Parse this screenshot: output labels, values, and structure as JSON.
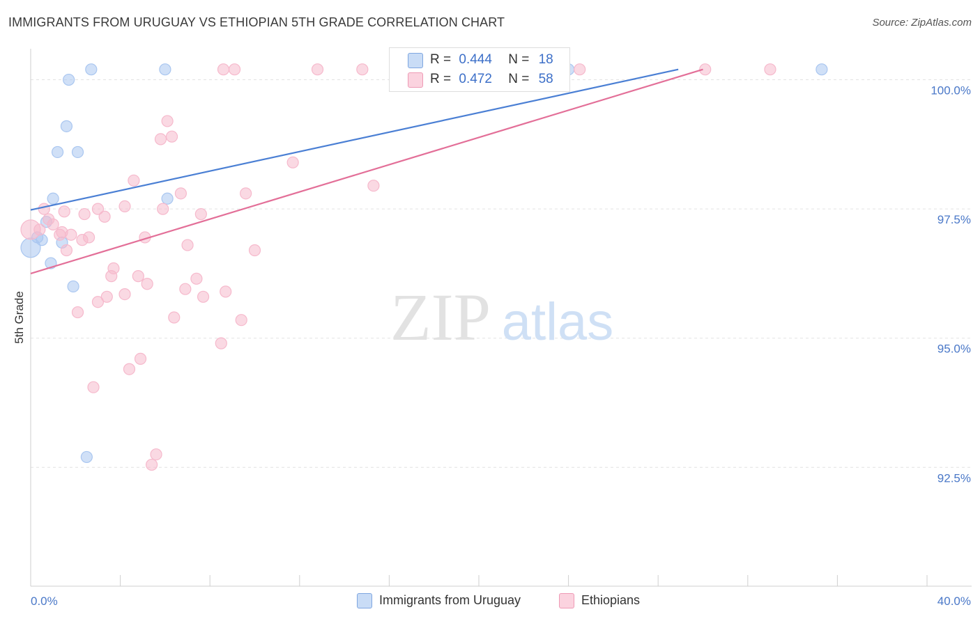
{
  "header": {
    "title": "IMMIGRANTS FROM URUGUAY VS ETHIOPIAN 5TH GRADE CORRELATION CHART",
    "source": "Source: ZipAtlas.com"
  },
  "watermark": {
    "zip": "ZIP",
    "atlas": "atlas"
  },
  "legend_top": {
    "rows": [
      {
        "r_label": "R =",
        "r_value": "0.444",
        "n_label": "N =",
        "n_value": "18",
        "color": "#a9c6f0"
      },
      {
        "r_label": "R =",
        "r_value": "0.472",
        "n_label": "N =",
        "n_value": "58",
        "color": "#f6b9cc"
      }
    ]
  },
  "legend_bottom": {
    "series": [
      {
        "label": "Immigrants from Uruguay",
        "color": "#a9c6f0"
      },
      {
        "label": "Ethiopians",
        "color": "#f6b9cc"
      }
    ]
  },
  "chart_data": {
    "type": "scatter",
    "title": "IMMIGRANTS FROM URUGUAY VS ETHIOPIAN 5TH GRADE CORRELATION CHART",
    "xlabel": "",
    "ylabel": "5th Grade",
    "xlim": [
      0,
      40
    ],
    "ylim": [
      90.2,
      100.6
    ],
    "x_tick_labels": [
      "0.0%",
      "40.0%"
    ],
    "y_ticks": [
      100.0,
      97.5,
      95.0,
      92.5
    ],
    "y_tick_labels": [
      "100.0%",
      "97.5%",
      "95.0%",
      "92.5%"
    ],
    "grid": true,
    "series": [
      {
        "name": "Immigrants from Uruguay",
        "color": "#4a7fd4",
        "fill": "#a9c6f0",
        "points": [
          [
            2.7,
            100.2
          ],
          [
            6.0,
            100.2
          ],
          [
            1.7,
            100.0
          ],
          [
            1.6,
            99.1
          ],
          [
            1.2,
            98.6
          ],
          [
            2.1,
            98.6
          ],
          [
            1.0,
            97.7
          ],
          [
            6.1,
            97.7
          ],
          [
            0.7,
            97.25
          ],
          [
            0.3,
            96.95
          ],
          [
            0.5,
            96.9
          ],
          [
            1.4,
            96.85
          ],
          [
            0.0,
            96.75
          ],
          [
            0.9,
            96.45
          ],
          [
            1.9,
            96.0
          ],
          [
            2.5,
            92.7
          ],
          [
            24.0,
            100.2
          ],
          [
            35.3,
            100.2
          ]
        ],
        "trend": {
          "x": [
            0,
            28.9
          ],
          "y": [
            97.48,
            100.2
          ]
        }
      },
      {
        "name": "Ethiopians",
        "color": "#e36f98",
        "fill": "#f6b9cc",
        "points": [
          [
            8.6,
            100.2
          ],
          [
            9.1,
            100.2
          ],
          [
            12.8,
            100.2
          ],
          [
            14.8,
            100.2
          ],
          [
            20.8,
            100.2
          ],
          [
            30.1,
            100.2
          ],
          [
            33.0,
            100.2
          ],
          [
            6.1,
            99.2
          ],
          [
            5.8,
            98.85
          ],
          [
            6.3,
            98.9
          ],
          [
            11.7,
            98.4
          ],
          [
            4.6,
            98.05
          ],
          [
            15.3,
            97.95
          ],
          [
            6.7,
            97.8
          ],
          [
            9.6,
            97.8
          ],
          [
            0.6,
            97.5
          ],
          [
            3.0,
            97.5
          ],
          [
            4.2,
            97.55
          ],
          [
            5.9,
            97.5
          ],
          [
            1.5,
            97.45
          ],
          [
            2.4,
            97.4
          ],
          [
            3.3,
            97.35
          ],
          [
            7.6,
            97.4
          ],
          [
            0.8,
            97.3
          ],
          [
            1.0,
            97.2
          ],
          [
            0.0,
            97.1
          ],
          [
            0.4,
            97.1
          ],
          [
            1.4,
            97.05
          ],
          [
            1.8,
            97.0
          ],
          [
            1.3,
            97.0
          ],
          [
            2.6,
            96.95
          ],
          [
            5.1,
            96.95
          ],
          [
            2.3,
            96.9
          ],
          [
            7.0,
            96.8
          ],
          [
            10.0,
            96.7
          ],
          [
            1.6,
            96.7
          ],
          [
            3.7,
            96.35
          ],
          [
            3.6,
            96.2
          ],
          [
            4.8,
            96.2
          ],
          [
            7.4,
            96.15
          ],
          [
            5.2,
            96.05
          ],
          [
            6.9,
            95.95
          ],
          [
            8.7,
            95.9
          ],
          [
            4.2,
            95.85
          ],
          [
            3.4,
            95.8
          ],
          [
            7.7,
            95.8
          ],
          [
            3.0,
            95.7
          ],
          [
            2.1,
            95.5
          ],
          [
            6.4,
            95.4
          ],
          [
            9.4,
            95.35
          ],
          [
            8.5,
            94.9
          ],
          [
            4.9,
            94.6
          ],
          [
            4.4,
            94.4
          ],
          [
            2.8,
            94.05
          ],
          [
            5.6,
            92.75
          ],
          [
            5.4,
            92.55
          ],
          [
            20.9,
            100.2
          ],
          [
            24.5,
            100.2
          ]
        ],
        "trend": {
          "x": [
            0,
            30.0
          ],
          "y": [
            96.25,
            100.2
          ]
        }
      }
    ]
  }
}
